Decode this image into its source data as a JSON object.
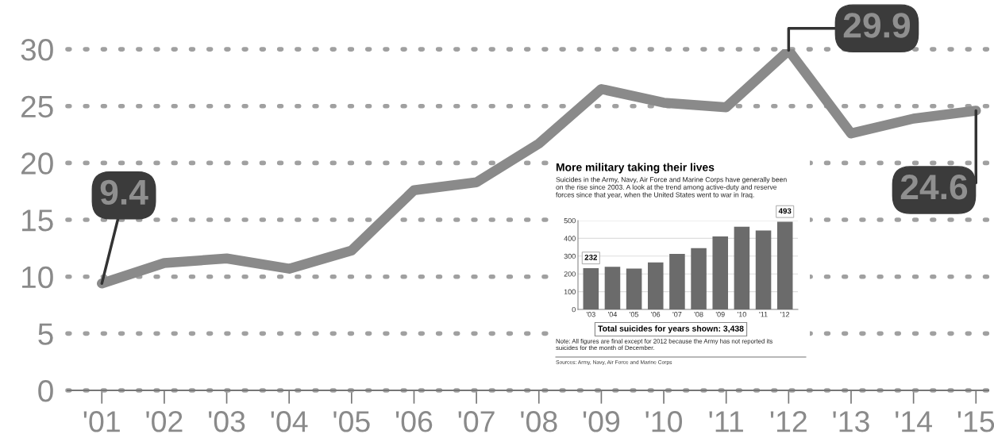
{
  "chart_data": [
    {
      "type": "line",
      "categories": [
        "'01",
        "'02",
        "'03",
        "'04",
        "'05",
        "'06",
        "'07",
        "'08",
        "'09",
        "'10",
        "'11",
        "'12",
        "'13",
        "'14",
        "'15"
      ],
      "series": [
        {
          "color": "#8a8a8a",
          "values": [
            9.4,
            11.2,
            11.6,
            10.7,
            12.3,
            17.6,
            18.3,
            21.7,
            26.5,
            25.3,
            24.9,
            29.9,
            22.6,
            23.9,
            24.6
          ],
          "value_labels": [
            "9.4",
            null,
            null,
            null,
            null,
            null,
            null,
            null,
            null,
            null,
            null,
            "29.9",
            null,
            null,
            "24.6"
          ]
        }
      ],
      "ylim": [
        0,
        30
      ],
      "yticks": [
        0,
        5,
        10,
        15,
        20,
        25,
        30
      ],
      "grid": "y",
      "line_style": "solid"
    },
    {
      "type": "bar",
      "title": "More military taking their lives",
      "subtitle": "Suicides in the Army, Navy, Air Force and Marine Corps have generally been\non the rise since 2003. A look at the trend among active-duty and reserve\nforces since that year, when the United States went to war in Iraq.",
      "categories": [
        "'03",
        "'04",
        "'05",
        "'06",
        "'07",
        "'08",
        "'09",
        "'10",
        "'11",
        "'12"
      ],
      "values": [
        232,
        240,
        230,
        264,
        312,
        345,
        411,
        465,
        444,
        493
      ],
      "color": "#6b6b6b",
      "value_labels": [
        "232",
        null,
        null,
        null,
        null,
        null,
        null,
        null,
        null,
        "493"
      ],
      "ylim": [
        0,
        500
      ],
      "yticks": [
        0,
        100,
        200,
        300,
        400,
        500
      ],
      "grid": "y",
      "annotations": [
        "Total suicides for years shown: 3,438",
        "Note: All figures are final except for 2012 because the Army has not reported its\nsuicides for the month of December.",
        "Sources: Army, Navy, Air Force and Marine Corps"
      ]
    }
  ]
}
